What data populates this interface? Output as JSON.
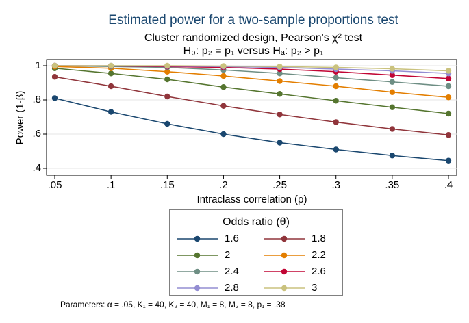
{
  "chart_data": {
    "type": "line",
    "title": "Estimated power for a two-sample proportions test",
    "subtitle": "Cluster randomized design, Pearson's χ² test",
    "subtitle2": "H₀: p₂ = p₁  versus  Hₐ: p₂ > p₁",
    "x_label": "Intraclass correlation (ρ)",
    "y_label": "Power (1-β)",
    "legend_title": "Odds ratio (θ)",
    "note": "Parameters: α = .05, K₁ = 40, K₂ = 40, M₁ = 8, M₂ = 8, p₁ = .38",
    "x": [
      0.05,
      0.1,
      0.15,
      0.2,
      0.25,
      0.3,
      0.35,
      0.4
    ],
    "xlim": [
      0.05,
      0.4
    ],
    "xticks": [
      {
        "value": 0.05,
        "label": ".05"
      },
      {
        "value": 0.1,
        "label": ".1"
      },
      {
        "value": 0.15,
        "label": ".15"
      },
      {
        "value": 0.2,
        "label": ".2"
      },
      {
        "value": 0.25,
        "label": ".25"
      },
      {
        "value": 0.3,
        "label": ".3"
      },
      {
        "value": 0.35,
        "label": ".35"
      },
      {
        "value": 0.4,
        "label": ".4"
      }
    ],
    "ylim": [
      0.4,
      1
    ],
    "yticks": [
      {
        "value": 0.4,
        "label": ".4"
      },
      {
        "value": 0.6,
        "label": ".6"
      },
      {
        "value": 0.8,
        "label": ".8"
      },
      1
    ],
    "grid": true,
    "series": [
      {
        "name": "1.6",
        "color": "#1a476f",
        "values": [
          0.81,
          0.73,
          0.66,
          0.6,
          0.55,
          0.51,
          0.475,
          0.445
        ]
      },
      {
        "name": "1.8",
        "color": "#90353b",
        "values": [
          0.935,
          0.88,
          0.82,
          0.765,
          0.715,
          0.67,
          0.63,
          0.595
        ]
      },
      {
        "name": "2",
        "color": "#55752f",
        "values": [
          0.985,
          0.955,
          0.92,
          0.875,
          0.835,
          0.795,
          0.757,
          0.72
        ]
      },
      {
        "name": "2.2",
        "color": "#e37e00",
        "values": [
          0.995,
          0.985,
          0.965,
          0.94,
          0.91,
          0.88,
          0.845,
          0.815
        ]
      },
      {
        "name": "2.4",
        "color": "#6e8e84",
        "values": [
          1,
          0.995,
          0.99,
          0.975,
          0.955,
          0.93,
          0.905,
          0.88
        ]
      },
      {
        "name": "2.6",
        "color": "#c10534",
        "values": [
          1,
          0.999,
          0.995,
          0.99,
          0.98,
          0.965,
          0.945,
          0.925
        ]
      },
      {
        "name": "2.8",
        "color": "#938dd2",
        "values": [
          1,
          1,
          0.998,
          0.995,
          0.99,
          0.98,
          0.97,
          0.955
        ]
      },
      {
        "name": "3",
        "color": "#cac27e",
        "values": [
          1,
          1,
          1,
          0.998,
          0.995,
          0.99,
          0.982,
          0.97
        ]
      }
    ]
  }
}
